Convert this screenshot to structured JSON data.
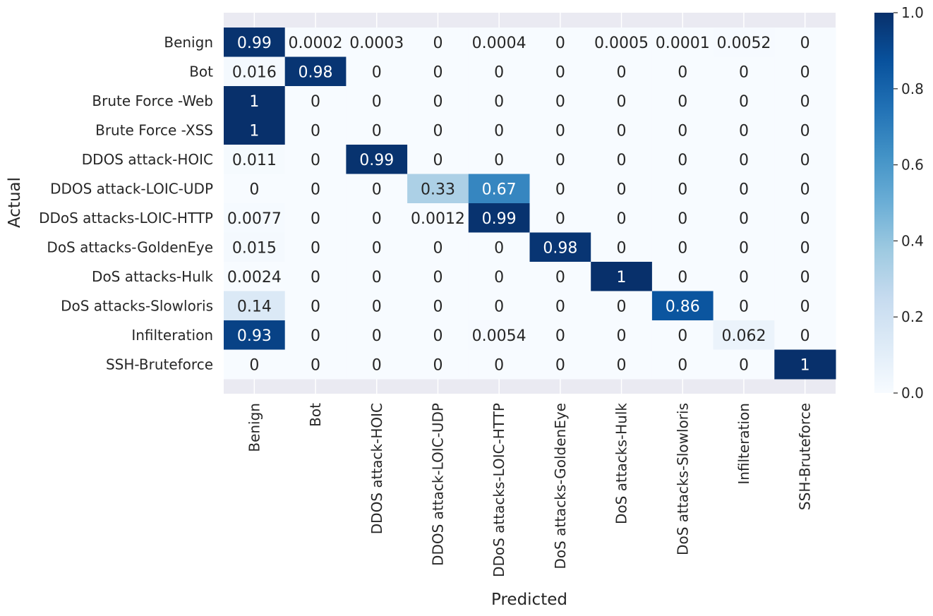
{
  "chart_data": {
    "type": "heatmap",
    "title": "",
    "xlabel": "Predicted",
    "ylabel": "Actual",
    "row_labels": [
      "Benign",
      "Bot",
      "Brute Force -Web",
      "Brute Force -XSS",
      "DDOS attack-HOIC",
      "DDOS attack-LOIC-UDP",
      "DDoS attacks-LOIC-HTTP",
      "DoS attacks-GoldenEye",
      "DoS attacks-Hulk",
      "DoS attacks-Slowloris",
      "Infilteration",
      "SSH-Bruteforce"
    ],
    "col_labels": [
      "Benign",
      "Bot",
      "DDOS attack-HOIC",
      "DDOS attack-LOIC-UDP",
      "DDoS attacks-LOIC-HTTP",
      "DoS attacks-GoldenEye",
      "DoS attacks-Hulk",
      "DoS attacks-Slowloris",
      "Infilteration",
      "SSH-Bruteforce"
    ],
    "values": [
      [
        "0.99",
        "0.0002",
        "0.0003",
        "0",
        "0.0004",
        "0",
        "0.0005",
        "0.0001",
        "0.0052",
        "0"
      ],
      [
        "0.016",
        "0.98",
        "0",
        "0",
        "0",
        "0",
        "0",
        "0",
        "0",
        "0"
      ],
      [
        "1",
        "0",
        "0",
        "0",
        "0",
        "0",
        "0",
        "0",
        "0",
        "0"
      ],
      [
        "1",
        "0",
        "0",
        "0",
        "0",
        "0",
        "0",
        "0",
        "0",
        "0"
      ],
      [
        "0.011",
        "0",
        "0.99",
        "0",
        "0",
        "0",
        "0",
        "0",
        "0",
        "0"
      ],
      [
        "0",
        "0",
        "0",
        "0.33",
        "0.67",
        "0",
        "0",
        "0",
        "0",
        "0"
      ],
      [
        "0.0077",
        "0",
        "0",
        "0.0012",
        "0.99",
        "0",
        "0",
        "0",
        "0",
        "0"
      ],
      [
        "0.015",
        "0",
        "0",
        "0",
        "0",
        "0.98",
        "0",
        "0",
        "0",
        "0"
      ],
      [
        "0.0024",
        "0",
        "0",
        "0",
        "0",
        "0",
        "1",
        "0",
        "0",
        "0"
      ],
      [
        "0.14",
        "0",
        "0",
        "0",
        "0",
        "0",
        "0",
        "0.86",
        "0",
        "0"
      ],
      [
        "0.93",
        "0",
        "0",
        "0",
        "0.0054",
        "0",
        "0",
        "0",
        "0.062",
        "0"
      ],
      [
        "0",
        "0",
        "0",
        "0",
        "0",
        "0",
        "0",
        "0",
        "0",
        "1"
      ]
    ],
    "colorbar": {
      "range": [
        0,
        1
      ],
      "ticks": [
        "0.0",
        "0.2",
        "0.4",
        "0.6",
        "0.8",
        "1.0"
      ],
      "colormap": "Blues",
      "color_low": "#f7fbff",
      "color_high": "#08306b"
    },
    "background_color": "#eaeaf2"
  }
}
